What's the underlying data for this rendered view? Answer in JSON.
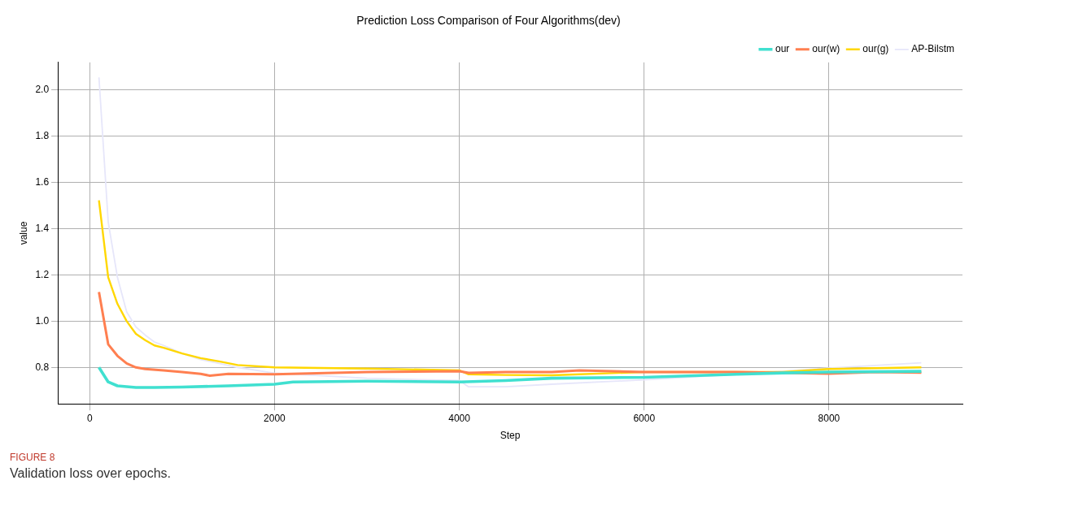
{
  "chart_data": {
    "type": "line",
    "title": "Prediction Loss Comparison of Four Algorithms(dev)",
    "xlabel": "Step",
    "ylabel": "value",
    "xlim": [
      -345,
      9445
    ],
    "xticks": [
      0,
      2000,
      4000,
      6000,
      8000
    ],
    "ylim": [
      0.642,
      2.12
    ],
    "yticks": [
      0.8,
      {
        "value": 1,
        "label": "1.0"
      },
      1.2,
      1.4,
      1.6,
      1.8,
      {
        "value": 2,
        "label": "2.0"
      }
    ],
    "grid": true,
    "legend": "top right",
    "marker": "none",
    "line_style": "solid",
    "annotations": [
      "FIGURE 8",
      "Validation loss over epochs."
    ],
    "series": [
      {
        "name": "our",
        "color": "#40e0d0",
        "x": [
          100,
          200,
          300,
          500,
          700,
          1000,
          1500,
          2000,
          2200,
          3000,
          4000,
          4500,
          5000,
          6000,
          7000,
          7500,
          8000,
          9000
        ],
        "values": [
          0.8,
          0.737,
          0.72,
          0.713,
          0.713,
          0.715,
          0.72,
          0.727,
          0.737,
          0.74,
          0.737,
          0.743,
          0.753,
          0.757,
          0.77,
          0.776,
          0.78,
          0.783
        ]
      },
      {
        "name": "our(w)",
        "color": "#ff7f50",
        "x": [
          100,
          200,
          300,
          400,
          500,
          600,
          800,
          1000,
          1200,
          1300,
          1500,
          2000,
          3000,
          4000,
          4100,
          4500,
          5000,
          5300,
          6000,
          7000,
          8000,
          8500,
          9000
        ],
        "values": [
          1.126,
          0.9,
          0.85,
          0.817,
          0.8,
          0.793,
          0.787,
          0.78,
          0.772,
          0.764,
          0.772,
          0.77,
          0.78,
          0.783,
          0.776,
          0.78,
          0.78,
          0.787,
          0.78,
          0.78,
          0.773,
          0.78,
          0.777
        ]
      },
      {
        "name": "our(g)",
        "color": "#ffd700",
        "x": [
          100,
          200,
          300,
          400,
          500,
          600,
          700,
          800,
          1000,
          1200,
          1400,
          1600,
          2000,
          3000,
          4000,
          4100,
          4500,
          5000,
          6000,
          7000,
          7500,
          8000,
          9000
        ],
        "values": [
          1.523,
          1.19,
          1.075,
          1.0,
          0.945,
          0.918,
          0.895,
          0.885,
          0.86,
          0.84,
          0.826,
          0.81,
          0.8,
          0.795,
          0.787,
          0.77,
          0.767,
          0.766,
          0.78,
          0.78,
          0.78,
          0.793,
          0.8
        ]
      },
      {
        "name": "AP-Bilstm",
        "color": "#e6e6fa",
        "x": [
          100,
          200,
          300,
          400,
          500,
          600,
          700,
          800,
          1000,
          1200,
          1400,
          1600,
          2000,
          3000,
          4000,
          4100,
          4500,
          5000,
          6000,
          7000,
          8000,
          9000
        ],
        "values": [
          2.055,
          1.43,
          1.19,
          1.04,
          0.975,
          0.94,
          0.91,
          0.895,
          0.86,
          0.834,
          0.817,
          0.8,
          0.775,
          0.753,
          0.743,
          0.716,
          0.716,
          0.727,
          0.746,
          0.77,
          0.797,
          0.82
        ]
      }
    ]
  }
}
